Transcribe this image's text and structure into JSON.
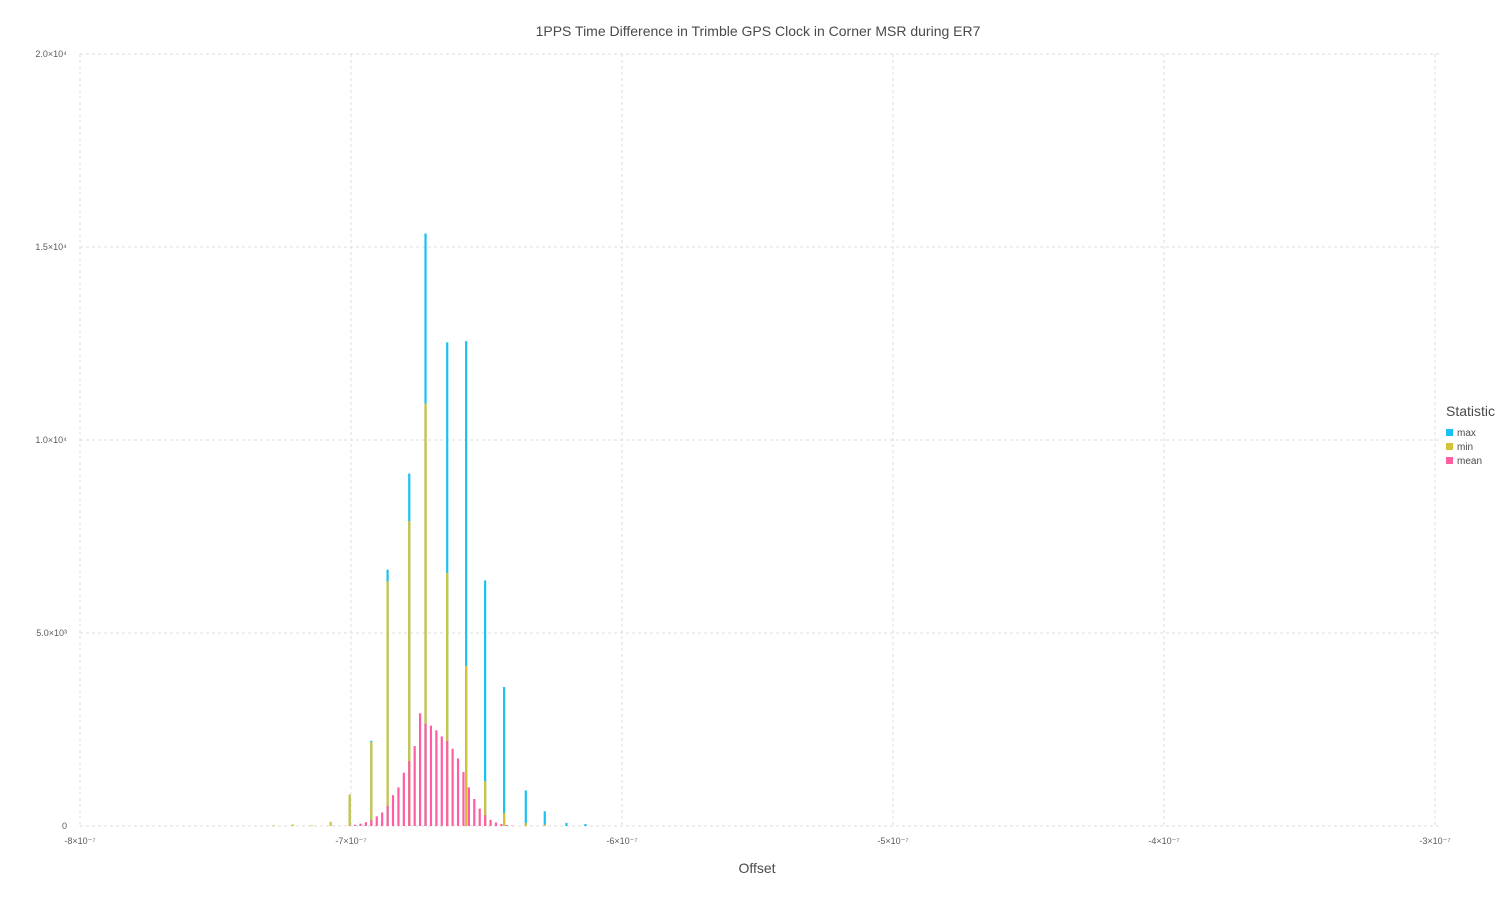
{
  "chart_data": {
    "type": "bar",
    "stacked": true,
    "title": "1PPS Time Difference in Trimble GPS Clock in Corner MSR during ER7",
    "xlabel": "Offset",
    "ylabel": "",
    "xlim": [
      -8e-07,
      -3e-07
    ],
    "ylim": [
      0,
      20000
    ],
    "bin_width": 1e-09,
    "x_ticks": [
      {
        "value": -8e-07,
        "label": "-8×10⁻⁷"
      },
      {
        "value": -7e-07,
        "label": "-7×10⁻⁷"
      },
      {
        "value": -6e-07,
        "label": "-6×10⁻⁷"
      },
      {
        "value": -5e-07,
        "label": "-5×10⁻⁷"
      },
      {
        "value": -4e-07,
        "label": "-4×10⁻⁷"
      },
      {
        "value": -3e-07,
        "label": "-3×10⁻⁷"
      }
    ],
    "y_ticks": [
      {
        "value": 0,
        "label": "0"
      },
      {
        "value": 5000,
        "label": "5.0×10³"
      },
      {
        "value": 10000,
        "label": "1.0×10⁴"
      },
      {
        "value": 15000,
        "label": "1.5×10⁴"
      },
      {
        "value": 20000,
        "label": "2.0×10⁴"
      }
    ],
    "grid": true,
    "legend": {
      "title": "Statistic",
      "placement": "right"
    },
    "series": [
      {
        "name": "mean",
        "color": "#ff5fa2",
        "points": [
          [
            -7.005e-07,
            10
          ],
          [
            -6.985e-07,
            30
          ],
          [
            -6.965e-07,
            60
          ],
          [
            -6.945e-07,
            100
          ],
          [
            -6.925e-07,
            160
          ],
          [
            -6.905e-07,
            250
          ],
          [
            -6.885e-07,
            350
          ],
          [
            -6.865e-07,
            520
          ],
          [
            -6.845e-07,
            800
          ],
          [
            -6.825e-07,
            1000
          ],
          [
            -6.805e-07,
            1380
          ],
          [
            -6.785e-07,
            1680
          ],
          [
            -6.765e-07,
            2070
          ],
          [
            -6.745e-07,
            2920
          ],
          [
            -6.725e-07,
            2650
          ],
          [
            -6.705e-07,
            2600
          ],
          [
            -6.685e-07,
            2480
          ],
          [
            -6.665e-07,
            2320
          ],
          [
            -6.645e-07,
            2200
          ],
          [
            -6.625e-07,
            2000
          ],
          [
            -6.605e-07,
            1750
          ],
          [
            -6.585e-07,
            1400
          ],
          [
            -6.565e-07,
            1000
          ],
          [
            -6.545e-07,
            700
          ],
          [
            -6.525e-07,
            450
          ],
          [
            -6.505e-07,
            280
          ],
          [
            -6.485e-07,
            160
          ],
          [
            -6.465e-07,
            90
          ],
          [
            -6.445e-07,
            50
          ],
          [
            -6.425e-07,
            25
          ],
          [
            -6.405e-07,
            10
          ]
        ]
      },
      {
        "name": "min",
        "color": "#d4c23a",
        "points": [
          [
            -7.285e-07,
            20
          ],
          [
            -7.215e-07,
            40
          ],
          [
            -7.145e-07,
            20
          ],
          [
            -7.075e-07,
            110
          ],
          [
            -7.005e-07,
            810
          ],
          [
            -6.925e-07,
            2180
          ],
          [
            -6.865e-07,
            6340
          ],
          [
            -6.785e-07,
            7900
          ],
          [
            -6.725e-07,
            10950
          ],
          [
            -6.645e-07,
            6560
          ],
          [
            -6.575e-07,
            4150
          ],
          [
            -6.505e-07,
            1160
          ],
          [
            -6.435e-07,
            340
          ],
          [
            -6.355e-07,
            80
          ],
          [
            -6.285e-07,
            40
          ]
        ]
      },
      {
        "name": "max",
        "color": "#19c1f3",
        "points": [
          [
            -7.005e-07,
            810
          ],
          [
            -6.925e-07,
            2210
          ],
          [
            -6.865e-07,
            6640
          ],
          [
            -6.785e-07,
            9130
          ],
          [
            -6.725e-07,
            15350
          ],
          [
            -6.645e-07,
            12530
          ],
          [
            -6.575e-07,
            12560
          ],
          [
            -6.505e-07,
            6360
          ],
          [
            -6.435e-07,
            3600
          ],
          [
            -6.355e-07,
            920
          ],
          [
            -6.285e-07,
            380
          ],
          [
            -6.205e-07,
            80
          ],
          [
            -6.135e-07,
            50
          ]
        ]
      }
    ]
  }
}
